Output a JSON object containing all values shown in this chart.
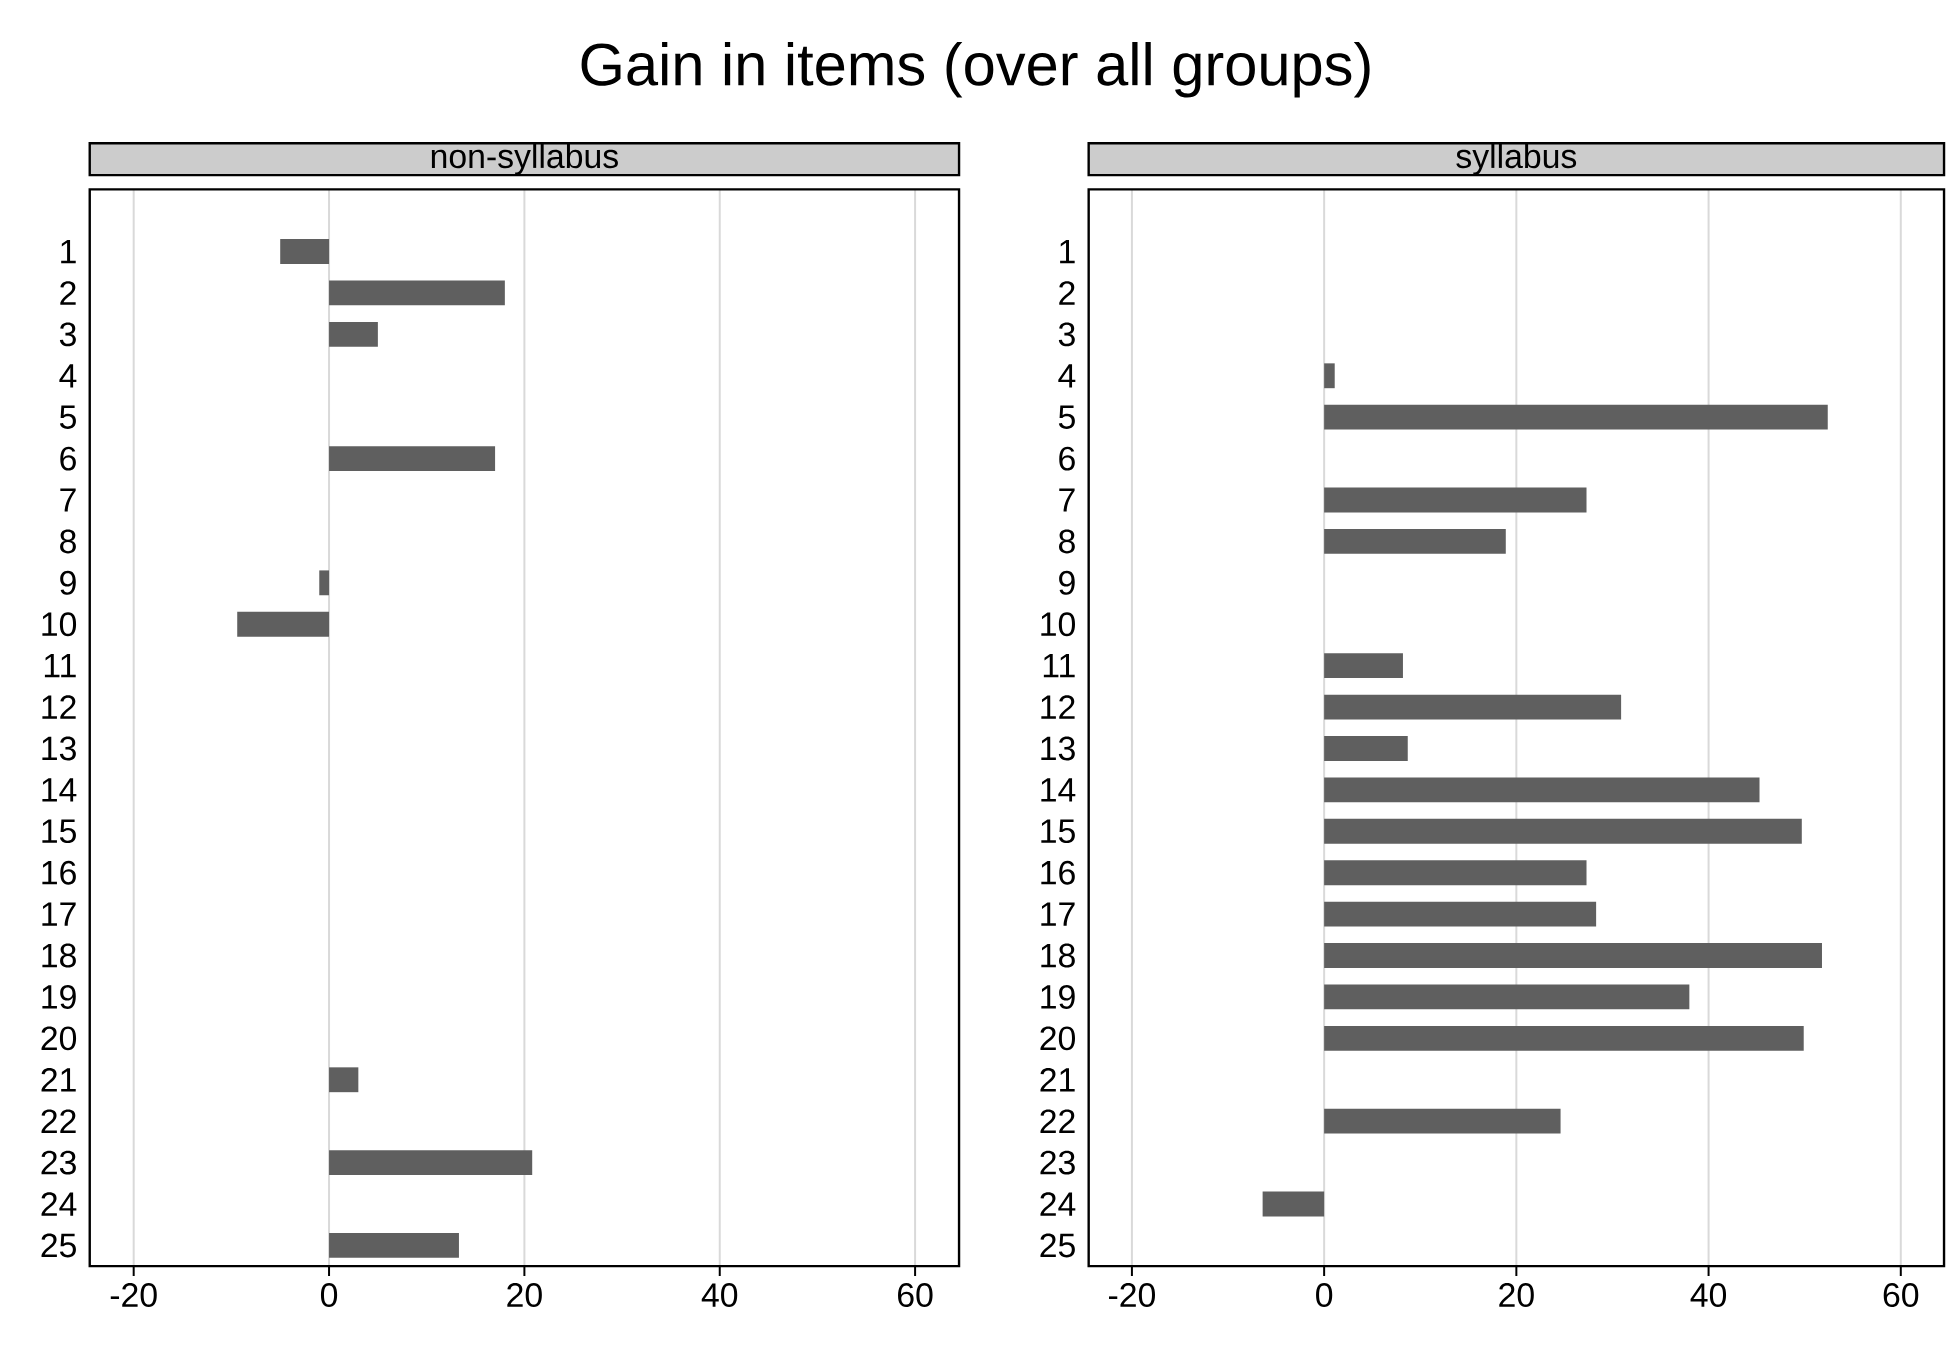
{
  "chart_data": [
    {
      "type": "bar",
      "title": "Gain in items (over all groups)",
      "subtitle": "non-syllabus",
      "orientation": "horizontal",
      "categories": [
        "1",
        "2",
        "3",
        "4",
        "5",
        "6",
        "7",
        "8",
        "9",
        "10",
        "11",
        "12",
        "13",
        "14",
        "15",
        "16",
        "17",
        "18",
        "19",
        "20",
        "21",
        "22",
        "23",
        "24",
        "25"
      ],
      "values": [
        -5,
        18,
        5,
        null,
        null,
        17,
        null,
        null,
        -1,
        -9.4,
        null,
        null,
        null,
        null,
        null,
        null,
        null,
        null,
        null,
        null,
        3,
        null,
        20.8,
        null,
        13.3
      ],
      "color": "#5f5f5f",
      "xlim": [
        -24.5,
        64.5
      ],
      "xticks": [
        -20,
        0,
        20,
        40,
        60
      ],
      "grid": "x"
    },
    {
      "type": "bar",
      "subtitle": "syllabus",
      "orientation": "horizontal",
      "categories": [
        "1",
        "2",
        "3",
        "4",
        "5",
        "6",
        "7",
        "8",
        "9",
        "10",
        "11",
        "12",
        "13",
        "14",
        "15",
        "16",
        "17",
        "18",
        "19",
        "20",
        "21",
        "22",
        "23",
        "24",
        "25"
      ],
      "values": [
        null,
        null,
        null,
        1.1,
        52.4,
        null,
        27.3,
        18.9,
        null,
        null,
        8.2,
        30.9,
        8.7,
        45.3,
        49.7,
        27.3,
        28.3,
        51.8,
        38,
        49.9,
        null,
        24.6,
        null,
        -6.4,
        null
      ],
      "color": "#5f5f5f",
      "xlim": [
        -24.5,
        64.5
      ],
      "xticks": [
        -20,
        0,
        20,
        40,
        60
      ],
      "grid": "x"
    }
  ]
}
